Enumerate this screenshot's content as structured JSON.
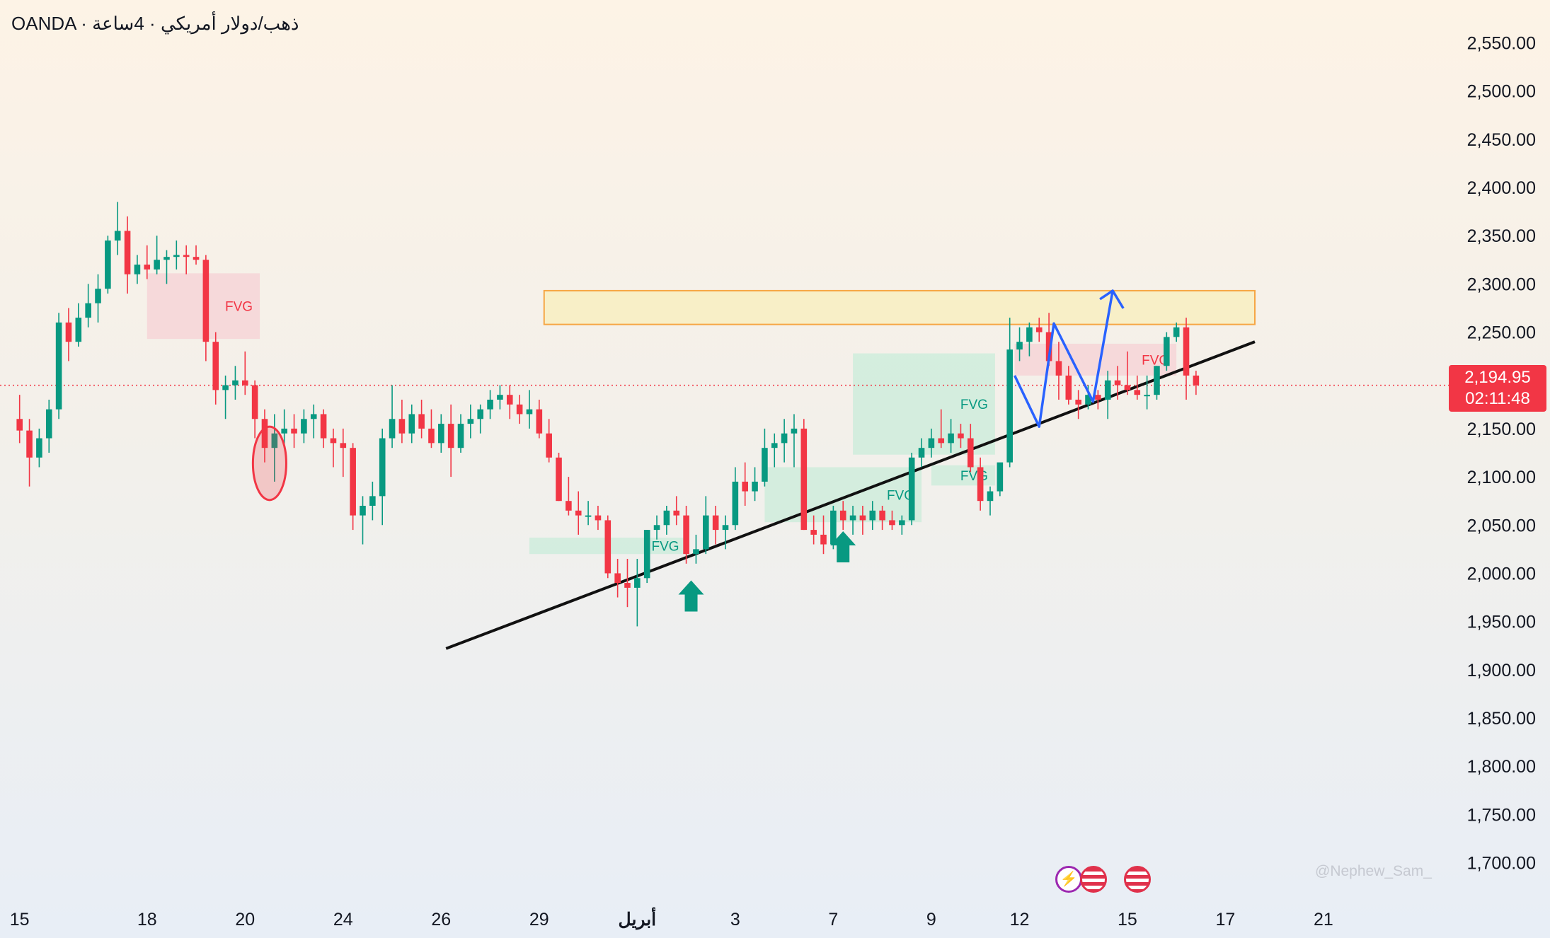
{
  "header": {
    "broker": "OANDA",
    "separator": "·",
    "symbol_name": "ذهب/دولار أمريكي",
    "timeframe": "4ساعة"
  },
  "current_price": "2,194.95",
  "countdown": "02:11:48",
  "watermark": "@Nephew_Sam_",
  "colors": {
    "up": "#089981",
    "down": "#f23645",
    "trendline": "#111111",
    "projection": "#2962ff",
    "resistance_fill": "#f9efc6",
    "resistance_border": "#f7a33c",
    "bull_fvg": "#c9ecd9",
    "bear_fvg": "#f6d3d6"
  },
  "icons": [
    "lightning-icon",
    "us-flag-icon",
    "us-flag-icon"
  ],
  "chart_data": {
    "type": "candlestick",
    "y_axis": {
      "ticks": [
        "2,550.00",
        "2,500.00",
        "2,450.00",
        "2,400.00",
        "2,350.00",
        "2,300.00",
        "2,250.00",
        "2,200.00",
        "2,150.00",
        "2,100.00",
        "2,050.00",
        "2,000.00",
        "1,950.00",
        "1,900.00",
        "1,850.00",
        "1,800.00",
        "1,750.00",
        "1,700.00"
      ],
      "range": [
        1685,
        2565
      ]
    },
    "x_axis": {
      "labels": [
        "15",
        "18",
        "20",
        "24",
        "26",
        "29",
        "أبريل",
        "3",
        "7",
        "9",
        "12",
        "15",
        "17",
        "21"
      ],
      "label_positions": [
        0,
        13,
        23,
        33,
        43,
        53,
        63,
        73,
        83,
        93,
        102,
        113,
        123,
        133
      ],
      "range": [
        -2,
        146
      ]
    },
    "candles": [
      [
        2160,
        2185,
        2135,
        2148
      ],
      [
        2148,
        2160,
        2090,
        2120
      ],
      [
        2120,
        2150,
        2110,
        2140
      ],
      [
        2140,
        2180,
        2125,
        2170
      ],
      [
        2170,
        2270,
        2160,
        2260
      ],
      [
        2260,
        2275,
        2220,
        2240
      ],
      [
        2240,
        2280,
        2235,
        2265
      ],
      [
        2265,
        2300,
        2255,
        2280
      ],
      [
        2280,
        2310,
        2260,
        2295
      ],
      [
        2295,
        2350,
        2290,
        2345
      ],
      [
        2345,
        2385,
        2330,
        2355
      ],
      [
        2355,
        2370,
        2290,
        2310
      ],
      [
        2310,
        2330,
        2300,
        2320
      ],
      [
        2320,
        2340,
        2305,
        2315
      ],
      [
        2315,
        2350,
        2310,
        2325
      ],
      [
        2325,
        2335,
        2300,
        2328
      ],
      [
        2328,
        2345,
        2315,
        2330
      ],
      [
        2330,
        2340,
        2310,
        2328
      ],
      [
        2328,
        2340,
        2320,
        2325
      ],
      [
        2325,
        2330,
        2220,
        2240
      ],
      [
        2240,
        2250,
        2175,
        2190
      ],
      [
        2190,
        2205,
        2160,
        2195
      ],
      [
        2195,
        2215,
        2180,
        2200
      ],
      [
        2200,
        2230,
        2185,
        2195
      ],
      [
        2195,
        2200,
        2140,
        2160
      ],
      [
        2160,
        2170,
        2115,
        2130
      ],
      [
        2130,
        2165,
        2095,
        2145
      ],
      [
        2145,
        2170,
        2130,
        2150
      ],
      [
        2150,
        2165,
        2130,
        2145
      ],
      [
        2145,
        2170,
        2135,
        2160
      ],
      [
        2160,
        2175,
        2140,
        2165
      ],
      [
        2165,
        2170,
        2130,
        2140
      ],
      [
        2140,
        2150,
        2110,
        2135
      ],
      [
        2135,
        2150,
        2100,
        2130
      ],
      [
        2130,
        2135,
        2045,
        2060
      ],
      [
        2060,
        2080,
        2030,
        2070
      ],
      [
        2070,
        2095,
        2055,
        2080
      ],
      [
        2080,
        2150,
        2050,
        2140
      ],
      [
        2140,
        2195,
        2130,
        2160
      ],
      [
        2160,
        2180,
        2135,
        2145
      ],
      [
        2145,
        2175,
        2135,
        2165
      ],
      [
        2165,
        2180,
        2140,
        2150
      ],
      [
        2150,
        2170,
        2130,
        2135
      ],
      [
        2135,
        2165,
        2125,
        2155
      ],
      [
        2155,
        2175,
        2100,
        2130
      ],
      [
        2130,
        2165,
        2125,
        2155
      ],
      [
        2155,
        2175,
        2140,
        2160
      ],
      [
        2160,
        2175,
        2145,
        2170
      ],
      [
        2170,
        2190,
        2160,
        2180
      ],
      [
        2180,
        2195,
        2170,
        2185
      ],
      [
        2185,
        2195,
        2160,
        2175
      ],
      [
        2175,
        2185,
        2155,
        2165
      ],
      [
        2165,
        2190,
        2150,
        2170
      ],
      [
        2170,
        2180,
        2140,
        2145
      ],
      [
        2145,
        2160,
        2115,
        2120
      ],
      [
        2120,
        2125,
        2075,
        2075
      ],
      [
        2075,
        2100,
        2060,
        2065
      ],
      [
        2065,
        2085,
        2040,
        2060
      ],
      [
        2060,
        2075,
        2050,
        2060
      ],
      [
        2060,
        2070,
        2045,
        2055
      ],
      [
        2055,
        2060,
        1995,
        2000
      ],
      [
        2000,
        2015,
        1975,
        1990
      ],
      [
        1990,
        2015,
        1965,
        1985
      ],
      [
        1985,
        2015,
        1945,
        1995
      ],
      [
        1995,
        2045,
        1990,
        2045
      ],
      [
        2045,
        2060,
        2035,
        2050
      ],
      [
        2050,
        2070,
        2040,
        2065
      ],
      [
        2065,
        2080,
        2050,
        2060
      ],
      [
        2060,
        2070,
        2010,
        2020
      ],
      [
        2020,
        2040,
        2010,
        2025
      ],
      [
        2025,
        2080,
        2020,
        2060
      ],
      [
        2060,
        2070,
        2030,
        2045
      ],
      [
        2045,
        2060,
        2025,
        2050
      ],
      [
        2050,
        2110,
        2045,
        2095
      ],
      [
        2095,
        2115,
        2070,
        2085
      ],
      [
        2085,
        2110,
        2075,
        2095
      ],
      [
        2095,
        2150,
        2090,
        2130
      ],
      [
        2130,
        2145,
        2110,
        2135
      ],
      [
        2135,
        2160,
        2115,
        2145
      ],
      [
        2145,
        2165,
        2110,
        2150
      ],
      [
        2150,
        2160,
        2045,
        2045
      ],
      [
        2045,
        2060,
        2030,
        2040
      ],
      [
        2040,
        2060,
        2020,
        2030
      ],
      [
        2030,
        2070,
        2025,
        2065
      ],
      [
        2065,
        2075,
        2045,
        2055
      ],
      [
        2055,
        2070,
        2040,
        2060
      ],
      [
        2060,
        2070,
        2040,
        2055
      ],
      [
        2055,
        2075,
        2045,
        2065
      ],
      [
        2065,
        2070,
        2045,
        2055
      ],
      [
        2055,
        2065,
        2045,
        2050
      ],
      [
        2050,
        2060,
        2040,
        2055
      ],
      [
        2055,
        2125,
        2050,
        2120
      ],
      [
        2120,
        2140,
        2110,
        2130
      ],
      [
        2130,
        2150,
        2120,
        2140
      ],
      [
        2140,
        2170,
        2130,
        2135
      ],
      [
        2135,
        2160,
        2125,
        2145
      ],
      [
        2145,
        2155,
        2130,
        2140
      ],
      [
        2140,
        2155,
        2105,
        2110
      ],
      [
        2110,
        2120,
        2065,
        2075
      ],
      [
        2075,
        2090,
        2060,
        2085
      ],
      [
        2085,
        2110,
        2080,
        2115
      ],
      [
        2115,
        2265,
        2110,
        2232
      ],
      [
        2232,
        2255,
        2220,
        2240
      ],
      [
        2240,
        2260,
        2225,
        2255
      ],
      [
        2255,
        2265,
        2240,
        2250
      ],
      [
        2250,
        2270,
        2215,
        2220
      ],
      [
        2220,
        2240,
        2180,
        2205
      ],
      [
        2205,
        2215,
        2175,
        2180
      ],
      [
        2180,
        2190,
        2160,
        2175
      ],
      [
        2175,
        2195,
        2170,
        2185
      ],
      [
        2185,
        2190,
        2170,
        2180
      ],
      [
        2180,
        2210,
        2160,
        2200
      ],
      [
        2200,
        2215,
        2180,
        2195
      ],
      [
        2195,
        2230,
        2185,
        2190
      ],
      [
        2190,
        2205,
        2180,
        2185
      ],
      [
        2185,
        2205,
        2170,
        2185
      ],
      [
        2185,
        2215,
        2180,
        2215
      ],
      [
        2215,
        2250,
        2210,
        2245
      ],
      [
        2245,
        2260,
        2240,
        2255
      ],
      [
        2255,
        2265,
        2180,
        2205
      ],
      [
        2205,
        2210,
        2185,
        2195
      ]
    ],
    "zones": [
      {
        "kind": "resistance",
        "x0": 53.5,
        "x1": 126,
        "y0": 2258,
        "y1": 2293
      },
      {
        "kind": "bear_fvg",
        "x0": 13,
        "x1": 24.5,
        "y0": 2243,
        "y1": 2311,
        "label": "FVG"
      },
      {
        "kind": "bear_fvg",
        "x0": 101.5,
        "x1": 118,
        "y0": 2205,
        "y1": 2238,
        "label": "FVG"
      },
      {
        "kind": "bull_fvg",
        "x0": 52,
        "x1": 68,
        "y0": 2020,
        "y1": 2037,
        "label": "FVG"
      },
      {
        "kind": "bull_fvg",
        "x0": 76,
        "x1": 92,
        "y0": 2053,
        "y1": 2110,
        "label": "FVG"
      },
      {
        "kind": "bull_fvg",
        "x0": 85,
        "x1": 99.5,
        "y0": 2123,
        "y1": 2228,
        "label": "FVG"
      },
      {
        "kind": "bull_fvg",
        "x0": 93,
        "x1": 99.5,
        "y0": 2091,
        "y1": 2112,
        "label": "FVG"
      }
    ],
    "trendline": [
      [
        43.5,
        1922
      ],
      [
        126,
        2240
      ]
    ],
    "projection": [
      [
        101.5,
        2205
      ],
      [
        104,
        2152
      ],
      [
        105.5,
        2259
      ],
      [
        109.5,
        2178
      ],
      [
        111.5,
        2293
      ]
    ],
    "projection_arrow_tip": [
      111.5,
      2293
    ],
    "up_arrows": [
      [
        68.5,
        1975
      ],
      [
        84,
        2026
      ]
    ],
    "highlight_ellipse": {
      "x": 25.5,
      "y": 2114,
      "rx": 1.7,
      "ry": 38
    },
    "current_price_value": 2194.95
  }
}
